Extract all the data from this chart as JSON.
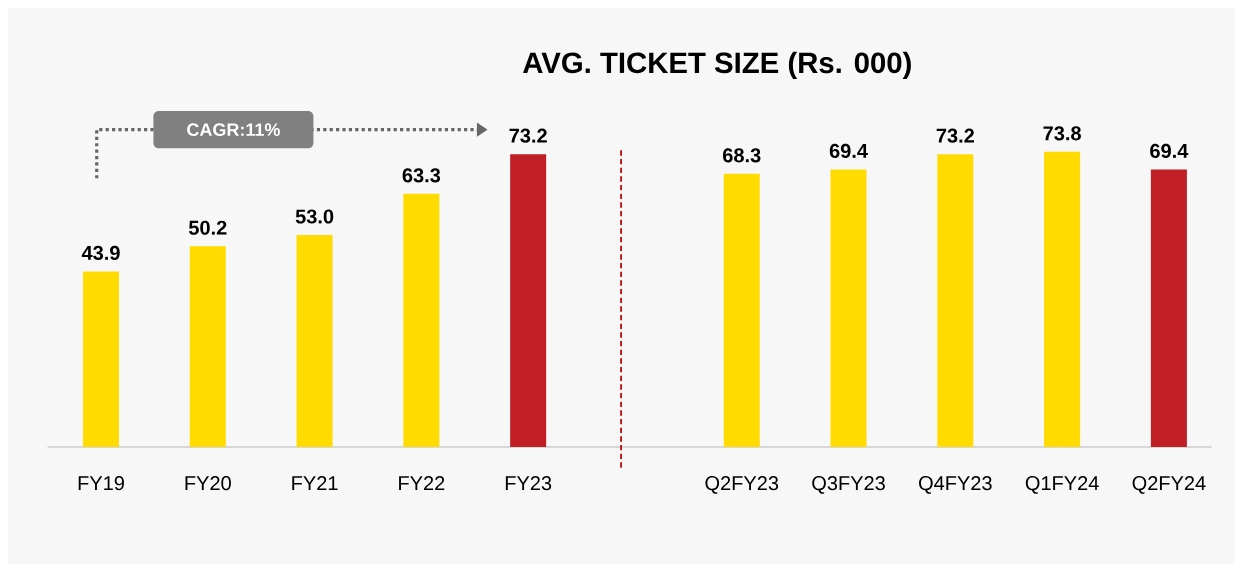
{
  "chart_data": {
    "type": "bar",
    "title": "AVG. TICKET SIZE (Rs. 000)",
    "categories": [
      "FY19",
      "FY20",
      "FY21",
      "FY22",
      "FY23",
      null,
      "Q2FY23",
      "Q3FY23",
      "Q4FY23",
      "Q1FY24",
      "Q2FY24"
    ],
    "values": [
      43.9,
      50.2,
      53.0,
      63.3,
      73.2,
      null,
      68.3,
      69.4,
      73.2,
      73.8,
      69.4
    ],
    "value_labels": [
      "43.9",
      "50.2",
      "53.0",
      "63.3",
      "73.2",
      null,
      "68.3",
      "69.4",
      "73.2",
      "73.8",
      "69.4"
    ],
    "colors": [
      "#ffdb00",
      "#ffdb00",
      "#ffdb00",
      "#ffdb00",
      "#c01f26",
      "#ffffff",
      "#ffdb00",
      "#ffdb00",
      "#ffdb00",
      "#ffdb00",
      "#c01f26"
    ],
    "data_labels": true,
    "annotations": [
      "CAGR:11%"
    ]
  }
}
